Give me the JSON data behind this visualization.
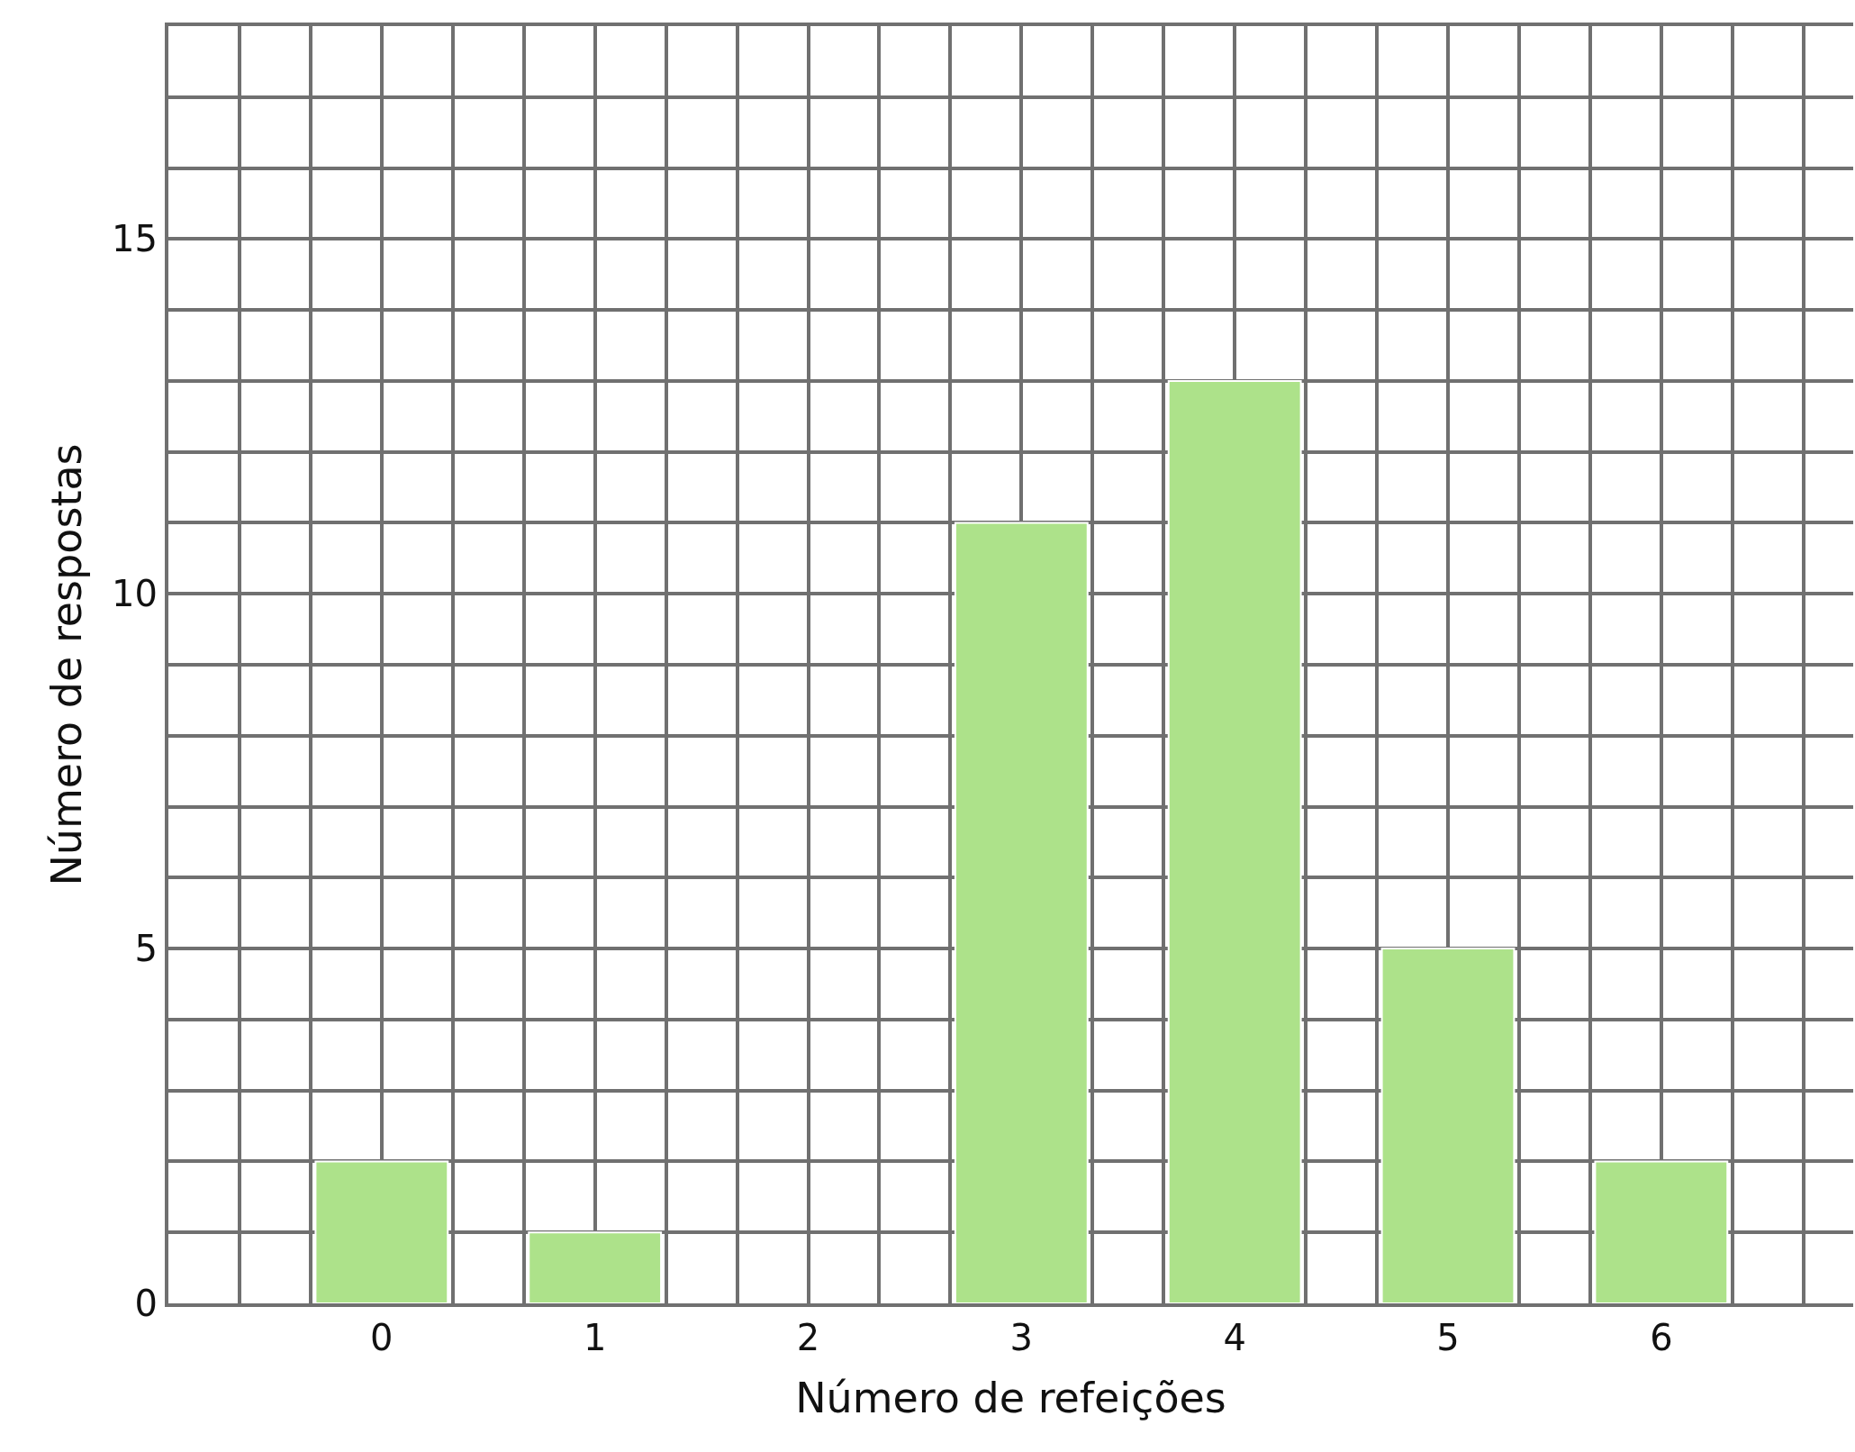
{
  "chart_data": {
    "type": "bar",
    "xlabel": "Número de refeições",
    "ylabel": "Número de respostas",
    "x": [
      0,
      1,
      2,
      3,
      4,
      5,
      6
    ],
    "values": [
      2,
      1,
      0,
      11,
      13,
      5,
      2
    ],
    "color": "#ade28a",
    "xlim": [
      -1,
      6.9
    ],
    "xticks": [
      0,
      1,
      2,
      3,
      4,
      5,
      6
    ],
    "ylim": [
      0,
      18
    ],
    "yticks": [
      0,
      {
        "value": 1,
        "label": null
      },
      {
        "value": 2,
        "label": null
      },
      {
        "value": 3,
        "label": null
      },
      {
        "value": 4,
        "label": null
      },
      5,
      {
        "value": 6,
        "label": null
      },
      {
        "value": 7,
        "label": null
      },
      {
        "value": 8,
        "label": null
      },
      {
        "value": 9,
        "label": null
      },
      10,
      {
        "value": 11,
        "label": null
      },
      {
        "value": 12,
        "label": null
      },
      {
        "value": 13,
        "label": null
      },
      {
        "value": 14,
        "label": null
      },
      15,
      {
        "value": 16,
        "label": null
      },
      {
        "value": 17,
        "label": null
      },
      {
        "value": 18,
        "label": null
      }
    ],
    "grid": true
  }
}
